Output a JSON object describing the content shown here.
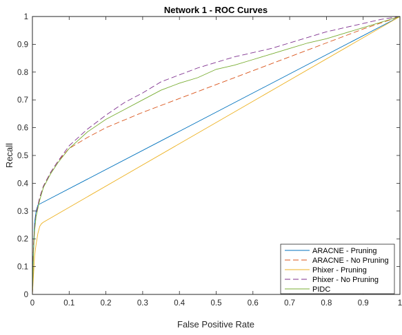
{
  "chart_data": {
    "type": "line",
    "title": "Network 1 - ROC Curves",
    "xlabel": "False Positive Rate",
    "ylabel": "Recall",
    "xlim": [
      0,
      1
    ],
    "ylim": [
      0,
      1
    ],
    "xticks": [
      "0",
      "0.1",
      "0.2",
      "0.3",
      "0.4",
      "0.5",
      "0.6",
      "0.7",
      "0.8",
      "0.9",
      "1"
    ],
    "yticks": [
      "0",
      "0.1",
      "0.2",
      "0.3",
      "0.4",
      "0.5",
      "0.6",
      "0.7",
      "0.8",
      "0.9",
      "1"
    ],
    "grid": false,
    "legend_position": "bottom-right",
    "series": [
      {
        "name": "ARACNE - Pruning",
        "color": "#0072BD",
        "dash": "solid",
        "x": [
          0,
          0.002,
          0.004,
          0.006,
          0.01,
          0.015,
          1
        ],
        "y": [
          0,
          0.13,
          0.2,
          0.26,
          0.3,
          0.322,
          1
        ]
      },
      {
        "name": "ARACNE - No Pruning",
        "color": "#D95319",
        "dash": "dashed",
        "x": [
          0,
          0.003,
          0.006,
          0.01,
          0.02,
          0.03,
          0.05,
          0.07,
          0.1,
          0.15,
          0.2,
          0.3,
          0.4,
          0.5,
          0.6,
          0.7,
          0.8,
          0.9,
          1
        ],
        "y": [
          0,
          0.18,
          0.24,
          0.29,
          0.35,
          0.39,
          0.44,
          0.48,
          0.525,
          0.565,
          0.6,
          0.655,
          0.705,
          0.755,
          0.805,
          0.855,
          0.905,
          0.955,
          1
        ]
      },
      {
        "name": "Phixer - Pruning",
        "color": "#EDB120",
        "dash": "solid",
        "x": [
          0,
          0.003,
          0.006,
          0.01,
          0.015,
          0.02,
          0.025,
          0.03,
          1
        ],
        "y": [
          0,
          0.07,
          0.14,
          0.18,
          0.22,
          0.245,
          0.255,
          0.26,
          1
        ]
      },
      {
        "name": "Phixer - No Pruning",
        "color": "#7E2F8E",
        "dash": "dashed",
        "x": [
          0,
          0.003,
          0.006,
          0.01,
          0.02,
          0.03,
          0.05,
          0.07,
          0.1,
          0.15,
          0.2,
          0.25,
          0.3,
          0.35,
          0.4,
          0.45,
          0.5,
          0.55,
          0.6,
          0.65,
          0.7,
          0.75,
          0.8,
          0.85,
          0.9,
          0.95,
          1
        ],
        "y": [
          0,
          0.17,
          0.24,
          0.29,
          0.35,
          0.39,
          0.44,
          0.48,
          0.535,
          0.595,
          0.645,
          0.69,
          0.725,
          0.765,
          0.79,
          0.815,
          0.835,
          0.855,
          0.87,
          0.885,
          0.905,
          0.925,
          0.945,
          0.96,
          0.975,
          0.99,
          1
        ]
      },
      {
        "name": "PIDC",
        "color": "#77AC30",
        "dash": "solid",
        "x": [
          0,
          0.003,
          0.006,
          0.01,
          0.02,
          0.03,
          0.05,
          0.07,
          0.1,
          0.15,
          0.2,
          0.25,
          0.3,
          0.35,
          0.4,
          0.45,
          0.5,
          0.55,
          0.6,
          0.65,
          0.7,
          0.75,
          0.8,
          0.85,
          0.9,
          0.95,
          1
        ],
        "y": [
          0,
          0.15,
          0.23,
          0.28,
          0.34,
          0.385,
          0.435,
          0.475,
          0.525,
          0.585,
          0.63,
          0.665,
          0.7,
          0.735,
          0.76,
          0.78,
          0.81,
          0.825,
          0.845,
          0.865,
          0.885,
          0.905,
          0.92,
          0.94,
          0.96,
          0.98,
          1
        ]
      }
    ]
  }
}
